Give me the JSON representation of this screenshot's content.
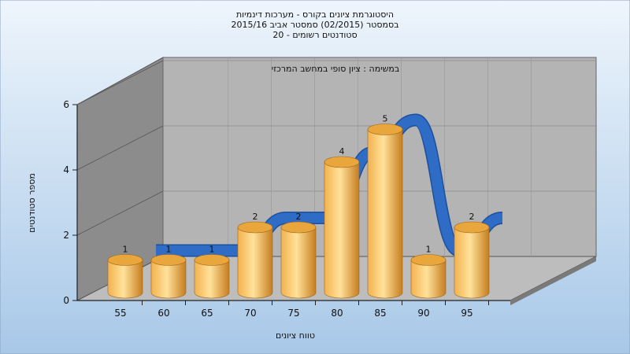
{
  "chart_data": {
    "type": "bar",
    "title_lines": [
      "היסטוגרמת ציונים בקורס - מערכות דינמיות",
      "בסמסטר  (02/2015)  סמסטר אביב 2015/16",
      "סטודנטים רשומים - 20"
    ],
    "subtitle": "במשימה : ציון סופי במחשב המרכזי",
    "xlabel": "טווח ציונים",
    "ylabel": "מספר סטודנטים",
    "categories": [
      "55",
      "60",
      "65",
      "70",
      "75",
      "80",
      "85",
      "90",
      "95"
    ],
    "values": [
      1,
      1,
      1,
      2,
      2,
      4,
      5,
      1,
      2
    ],
    "y_ticks": [
      "0",
      "2",
      "4",
      "6"
    ],
    "ylim": [
      0,
      6
    ],
    "data_labels": true,
    "grid": true,
    "trend_line": true,
    "colors": {
      "background_top": "#eef5fc",
      "background_bottom": "#a8c8e8",
      "bar_light": "#ffe29a",
      "bar_mid": "#f2b24e",
      "bar_dark": "#c67d1f",
      "trend": "#2f6cc6",
      "back_wall": "#b4b4b4",
      "side_wall": "#8c8c8c",
      "floor": "#bdbdbd"
    }
  }
}
